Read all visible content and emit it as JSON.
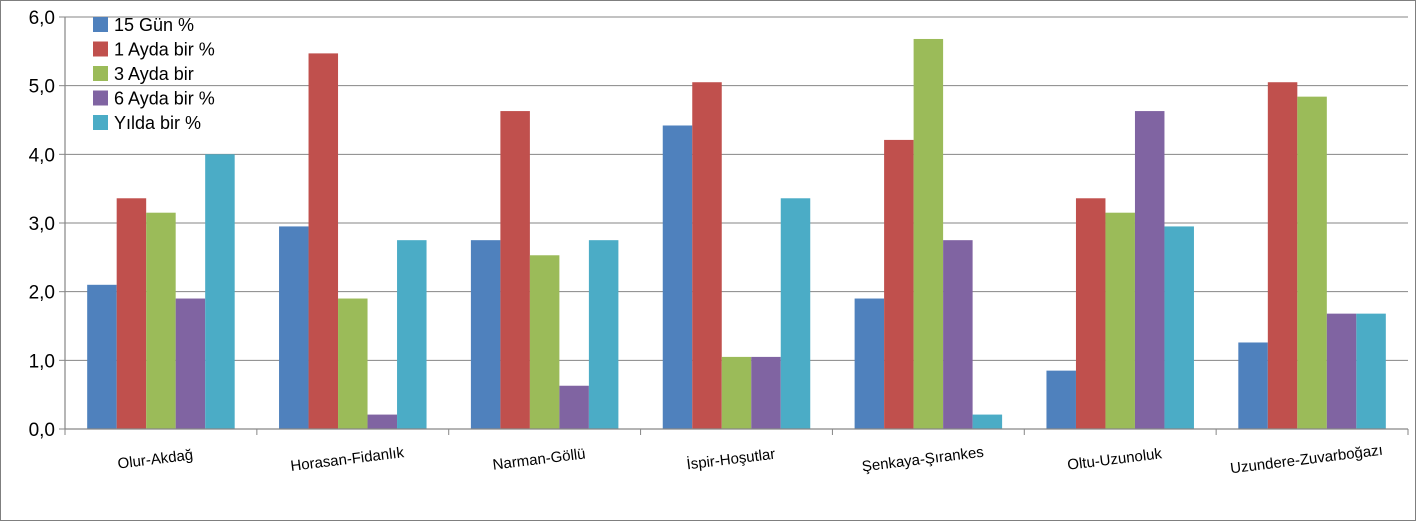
{
  "chart_data": {
    "type": "bar",
    "title": "",
    "xlabel": "",
    "ylabel": "",
    "ylim": [
      0,
      6
    ],
    "yticks": [
      "0,0",
      "1,0",
      "2,0",
      "3,0",
      "4,0",
      "5,0",
      "6,0"
    ],
    "grid": "horizontal",
    "legend_position": "top-left",
    "categories": [
      "Olur-Akdağ",
      "Horasan-Fidanlık",
      "Narman-Göllü",
      "İspir-Hoşutlar",
      "Şenkaya-Şırankes",
      "Oltu-Uzunoluk",
      "Uzundere-Zuvarboğazı"
    ],
    "series": [
      {
        "name": "15 Gün %",
        "color": "#4f81bd",
        "values": [
          2.1,
          2.95,
          2.75,
          4.42,
          1.9,
          0.85,
          1.26
        ]
      },
      {
        "name": "1 Ayda bir %",
        "color": "#c0504d",
        "values": [
          3.36,
          5.47,
          4.63,
          5.05,
          4.21,
          3.36,
          5.05
        ]
      },
      {
        "name": "3 Ayda bir",
        "color": "#9bbb59",
        "values": [
          3.15,
          1.9,
          2.53,
          1.05,
          5.68,
          3.15,
          4.84
        ]
      },
      {
        "name": "6 Ayda bir %",
        "color": "#8064a2",
        "values": [
          1.9,
          0.21,
          0.63,
          1.05,
          2.75,
          4.63,
          1.68
        ]
      },
      {
        "name": "Yılda bir %",
        "color": "#4bacc6",
        "values": [
          4.0,
          2.75,
          2.75,
          3.36,
          0.21,
          2.95,
          1.68
        ]
      }
    ]
  }
}
